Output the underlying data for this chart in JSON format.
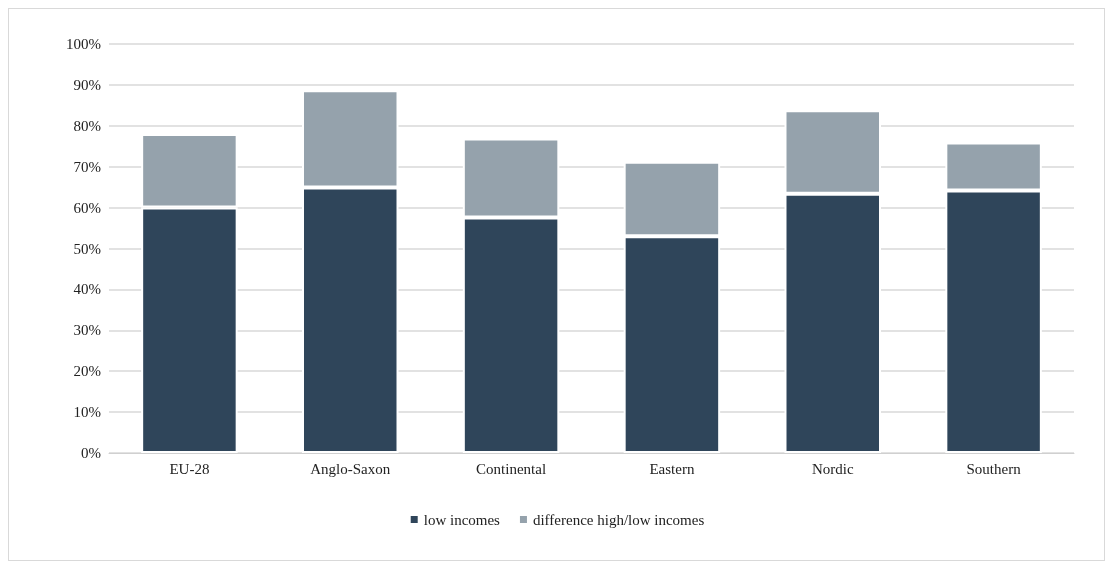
{
  "chart_data": {
    "type": "bar",
    "stacked": true,
    "categories": [
      "EU-28",
      "Anglo-Saxon",
      "Continental",
      "Eastern",
      "Nordic",
      "Southern"
    ],
    "series": [
      {
        "name": "low incomes",
        "color": "#2f455a",
        "values": [
          60,
          64.9,
          57.6,
          53,
          63.4,
          64.2
        ]
      },
      {
        "name": "difference high/low incomes",
        "color": "#95a2ac",
        "values": [
          18,
          23.8,
          19.3,
          18.2,
          20.4,
          11.7
        ]
      }
    ],
    "ylim": [
      0,
      100
    ],
    "yticks": [
      {
        "value": 0,
        "label": "0%"
      },
      {
        "value": 10,
        "label": "10%"
      },
      {
        "value": 20,
        "label": "20%"
      },
      {
        "value": 30,
        "label": "30%"
      },
      {
        "value": 40,
        "label": "40%"
      },
      {
        "value": 50,
        "label": "50%"
      },
      {
        "value": 60,
        "label": "60%"
      },
      {
        "value": 70,
        "label": "70%"
      },
      {
        "value": 80,
        "label": "80%"
      },
      {
        "value": 90,
        "label": "90%"
      },
      {
        "value": 100,
        "label": "100%"
      }
    ],
    "grid": "y",
    "legend": "bottom"
  }
}
